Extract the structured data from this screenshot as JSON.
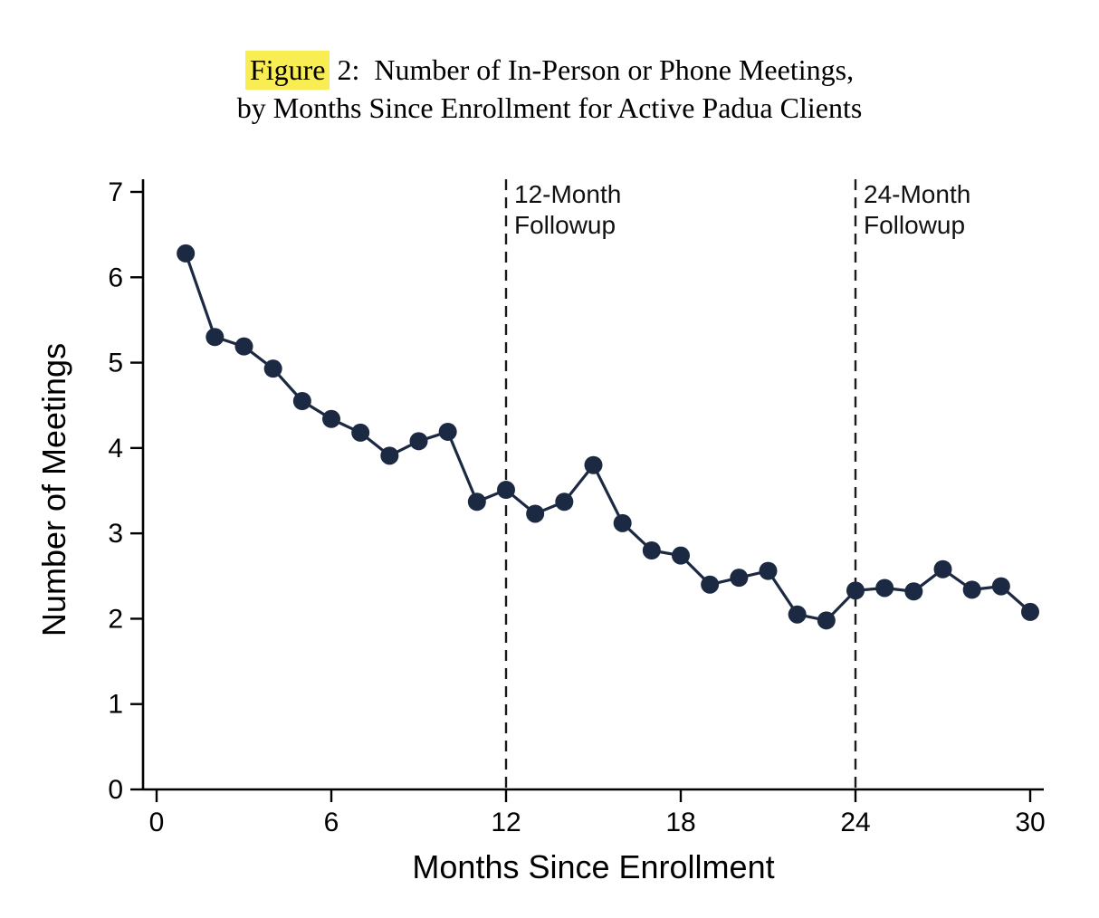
{
  "figure": {
    "title_highlight": "Figure",
    "title_line1_rest": " 2:  Number of In-Person or Phone Meetings,",
    "title_line2": "by Months Since Enrollment for Active Padua Clients",
    "highlight_color": "#f9ed54"
  },
  "chart_data": {
    "type": "line",
    "title": "Figure 2: Number of In-Person or Phone Meetings, by Months Since Enrollment for Active Padua Clients",
    "xlabel": "Months Since Enrollment",
    "ylabel": "Number of Meetings",
    "x": [
      1,
      2,
      3,
      4,
      5,
      6,
      7,
      8,
      9,
      10,
      11,
      12,
      13,
      14,
      15,
      16,
      17,
      18,
      19,
      20,
      21,
      22,
      23,
      24,
      25,
      26,
      27,
      28,
      29,
      30
    ],
    "values": [
      6.28,
      5.3,
      5.19,
      4.93,
      4.55,
      4.34,
      4.18,
      3.91,
      4.08,
      4.19,
      3.37,
      3.51,
      3.23,
      3.37,
      3.8,
      3.12,
      2.8,
      2.74,
      2.4,
      2.48,
      2.56,
      2.05,
      1.98,
      2.33,
      2.36,
      2.32,
      2.58,
      2.34,
      2.38,
      2.08
    ],
    "xlim": [
      0,
      30
    ],
    "ylim": [
      0,
      7
    ],
    "x_ticks": [
      0,
      6,
      12,
      18,
      24,
      30
    ],
    "y_ticks": [
      0,
      1,
      2,
      3,
      4,
      5,
      6,
      7
    ],
    "grid": false,
    "legend": "none",
    "marker": "circle",
    "line_color": "#1b2a42",
    "marker_color": "#1b2a42",
    "axis_color": "#000000",
    "reference_lines": [
      {
        "x": 12,
        "label_line1": "12-Month",
        "label_line2": "Followup",
        "style": "dashed",
        "color": "#1a1a1a"
      },
      {
        "x": 24,
        "label_line1": "24-Month",
        "label_line2": "Followup",
        "style": "dashed",
        "color": "#1a1a1a"
      }
    ]
  }
}
